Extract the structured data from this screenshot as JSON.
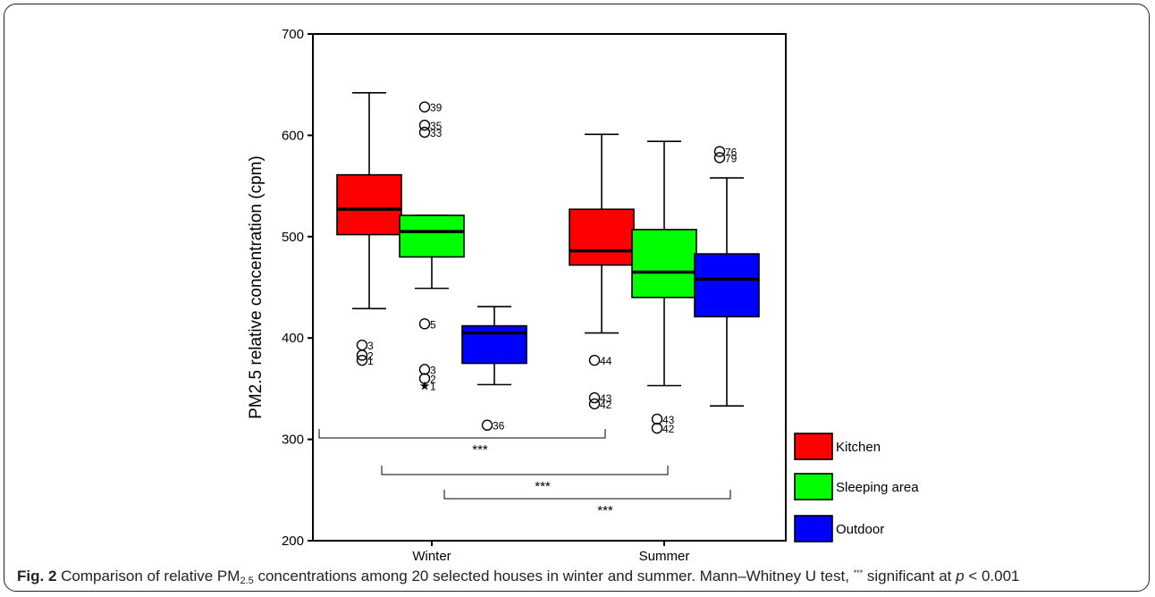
{
  "chart_data": {
    "type": "box",
    "ylabel": "PM2.5 relative concentration (cpm)",
    "ylim": [
      200,
      700
    ],
    "yticks": [
      200,
      300,
      400,
      500,
      600,
      700
    ],
    "categories": [
      "Winter",
      "Summer"
    ],
    "series": [
      {
        "name": "Kitchen",
        "color": "#ff0000"
      },
      {
        "name": "Sleeping area",
        "color": "#00ff00"
      },
      {
        "name": "Outdoor",
        "color": "#0000ff"
      }
    ],
    "boxes": [
      {
        "category": "Winter",
        "series": "Kitchen",
        "whisker_low": 429,
        "q1": 502,
        "median": 527,
        "q3": 561,
        "whisker_high": 642,
        "outliers": [
          {
            "value": 393,
            "label": "3"
          },
          {
            "value": 383,
            "label": "2"
          },
          {
            "value": 378,
            "label": "1"
          }
        ]
      },
      {
        "category": "Winter",
        "series": "Sleeping area",
        "whisker_low": 449,
        "q1": 480,
        "median": 505,
        "q3": 521,
        "whisker_high": 521,
        "outliers": [
          {
            "value": 628,
            "label": "39"
          },
          {
            "value": 610,
            "label": "35"
          },
          {
            "value": 603,
            "label": "33"
          },
          {
            "value": 414,
            "label": "5"
          },
          {
            "value": 369,
            "label": "3"
          },
          {
            "value": 360,
            "label": "2"
          }
        ],
        "extremes": [
          {
            "value": 353,
            "label": "1"
          }
        ]
      },
      {
        "category": "Winter",
        "series": "Outdoor",
        "whisker_low": 354,
        "q1": 375,
        "median": 405,
        "q3": 412,
        "whisker_high": 431,
        "outliers": [
          {
            "value": 314,
            "label": "36"
          }
        ]
      },
      {
        "category": "Summer",
        "series": "Kitchen",
        "whisker_low": 405,
        "q1": 472,
        "median": 486,
        "q3": 527,
        "whisker_high": 601,
        "outliers": [
          {
            "value": 378,
            "label": "44"
          },
          {
            "value": 341,
            "label": "43"
          },
          {
            "value": 335,
            "label": "42"
          }
        ]
      },
      {
        "category": "Summer",
        "series": "Sleeping area",
        "whisker_low": 353,
        "q1": 440,
        "median": 465,
        "q3": 507,
        "whisker_high": 594,
        "outliers": [
          {
            "value": 320,
            "label": "43"
          },
          {
            "value": 311,
            "label": "42"
          }
        ]
      },
      {
        "category": "Summer",
        "series": "Outdoor",
        "whisker_low": 333,
        "q1": 421,
        "median": 458,
        "q3": 483,
        "whisker_high": 558,
        "outliers": [
          {
            "value": 584,
            "label": "76"
          },
          {
            "value": 578,
            "label": "79"
          }
        ]
      }
    ],
    "significance": [
      {
        "from_box": 0,
        "to_box": 3,
        "label": "***"
      },
      {
        "from_box": 1,
        "to_box": 4,
        "label": "***"
      },
      {
        "from_box": 2,
        "to_box": 5,
        "label": "***"
      }
    ],
    "legend_position": "bottom-right"
  },
  "caption": {
    "fig_label": "Fig. 2",
    "text_1": " Comparison of relative PM",
    "sub": "2.5",
    "text_2": " concentrations among 20 selected houses in winter and summer. Mann–Whitney U test, ",
    "sup": "***",
    "text_3": " significant at ",
    "p_var": "p",
    "text_4": " < 0.001"
  }
}
